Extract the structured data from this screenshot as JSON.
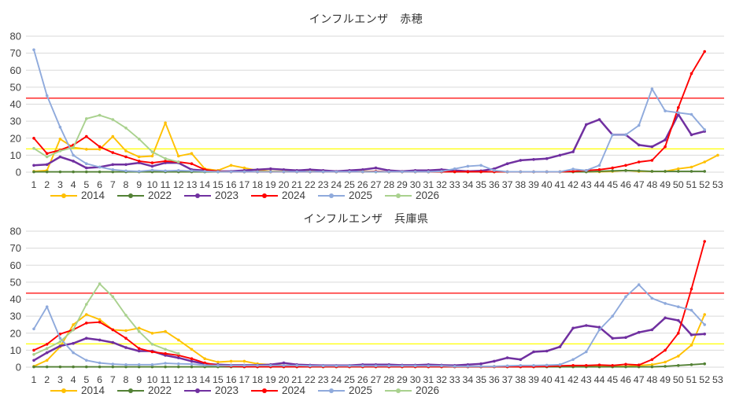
{
  "page": {
    "background": "#FFFFFF"
  },
  "colors": {
    "grid": "#D9D9D9",
    "axis_text": "#404040",
    "title_text": "#333333",
    "warning_line": "#FF0000",
    "attention_line": "#FFFF00"
  },
  "chart_data": [
    {
      "type": "line",
      "title": "インフルエンザ　赤穂",
      "xlabel": "",
      "ylabel": "",
      "ylim": [
        0,
        80
      ],
      "y_ticks": [
        0,
        10,
        20,
        30,
        40,
        50,
        60,
        70,
        80
      ],
      "x_ticks": [
        1,
        2,
        3,
        4,
        5,
        6,
        7,
        8,
        9,
        10,
        11,
        12,
        13,
        14,
        15,
        16,
        17,
        18,
        19,
        20,
        21,
        22,
        23,
        24,
        25,
        26,
        27,
        28,
        29,
        30,
        31,
        32,
        33,
        34,
        35,
        36,
        37,
        38,
        39,
        40,
        41,
        42,
        43,
        44,
        45,
        46,
        47,
        48,
        49,
        50,
        51,
        52,
        53
      ],
      "grid": true,
      "legend_position": "bottom",
      "reference_lines": [
        {
          "name": "warning-line",
          "value": 43.5,
          "color": "#FF0000"
        },
        {
          "name": "attention-line",
          "value": 13.7,
          "color": "#FFFF00"
        }
      ],
      "series": [
        {
          "name": "2014",
          "color": "#FFC000",
          "values": [
            0.5,
            1,
            19.5,
            14.5,
            13.5,
            13.5,
            21,
            12.5,
            9,
            9.5,
            29,
            9.5,
            11,
            2,
            1,
            4,
            2.5,
            1,
            0.5,
            0.5,
            0.5,
            0.5,
            0.5,
            0.3,
            0.3,
            0.5,
            0.5,
            0.3,
            0.3,
            0.3,
            0.3,
            0.3,
            0.3,
            0.3,
            0.3,
            0.3,
            0.3,
            0.3,
            0.3,
            0.3,
            0.3,
            0.3,
            0.3,
            0.3,
            0.5,
            1,
            0.5,
            0.5,
            0.5,
            2,
            3,
            6,
            10
          ]
        },
        {
          "name": "2022",
          "color": "#538135",
          "values": [
            0.2,
            0.2,
            0.2,
            0.2,
            0.2,
            0.2,
            0.2,
            0.2,
            0.2,
            0.2,
            0.2,
            0.2,
            0.2,
            0.2,
            0.2,
            0.2,
            0.2,
            0.2,
            0.2,
            0.2,
            0.2,
            0.2,
            0.2,
            0.2,
            0.2,
            0.2,
            0.2,
            0.2,
            0.2,
            0.2,
            0.2,
            0.2,
            0.2,
            0.2,
            0.2,
            0.2,
            0.2,
            0.2,
            0.2,
            0.2,
            0.2,
            0.2,
            0.2,
            0.5,
            0.8,
            1,
            0.8,
            0.5,
            0.5,
            0.5,
            0.5,
            0.5
          ]
        },
        {
          "name": "2023",
          "color": "#7030A0",
          "values": [
            4,
            4.5,
            9,
            6.5,
            2.5,
            3,
            4.5,
            4.5,
            5.5,
            3.5,
            5.5,
            5.5,
            1.5,
            1,
            0.5,
            0.5,
            1,
            1.5,
            2,
            1.5,
            1,
            1.5,
            1,
            0.5,
            1,
            1.5,
            2.5,
            1,
            0.5,
            1,
            1,
            1.5,
            1,
            0.5,
            0.8,
            2,
            5,
            7,
            7.5,
            8,
            10,
            12,
            28,
            31,
            22,
            22,
            16,
            15,
            19,
            34,
            22,
            24
          ]
        },
        {
          "name": "2024",
          "color": "#FF0000",
          "values": [
            20,
            11,
            13,
            16,
            21,
            15,
            11.5,
            9,
            6.5,
            5.5,
            6.5,
            6,
            5,
            1.5,
            0.5,
            0.3,
            0.3,
            0.3,
            0.3,
            0.3,
            0.3,
            0.3,
            0.3,
            0.3,
            0.3,
            0.3,
            0.5,
            0.3,
            0.3,
            0.3,
            0.3,
            0.3,
            0.3,
            0.3,
            0.3,
            0.3,
            0.3,
            0.3,
            0.3,
            0.3,
            0.3,
            0.5,
            1,
            1.5,
            2.5,
            4,
            6,
            7,
            15,
            38,
            58,
            71
          ]
        },
        {
          "name": "2025",
          "color": "#8FAADC",
          "values": [
            72,
            45,
            26.5,
            10,
            5,
            3,
            1.5,
            0.8,
            0.5,
            1.2,
            0.8,
            1,
            0.8,
            0.5,
            0.3,
            0.3,
            0.3,
            0.3,
            0.3,
            0.3,
            0.3,
            0.3,
            0.3,
            0.3,
            0.3,
            0.3,
            0.3,
            0.3,
            0.3,
            0.3,
            0.3,
            0.5,
            2,
            3.5,
            4,
            1,
            0.3,
            0.3,
            0.3,
            0.3,
            0.3,
            1.8,
            1,
            4,
            22,
            22,
            27.5,
            49,
            36,
            35,
            34,
            25
          ]
        },
        {
          "name": "2026",
          "color": "#A9D18E",
          "values": [
            14,
            9,
            12.5,
            14.5,
            31.5,
            33.5,
            31,
            26,
            19.5,
            12,
            8,
            6
          ]
        }
      ]
    },
    {
      "type": "line",
      "title": "インフルエンザ　兵庫県",
      "xlabel": "",
      "ylabel": "",
      "ylim": [
        0,
        80
      ],
      "y_ticks": [
        0,
        10,
        20,
        30,
        40,
        50,
        60,
        70,
        80
      ],
      "x_ticks": [
        1,
        2,
        3,
        4,
        5,
        6,
        7,
        8,
        9,
        10,
        11,
        12,
        13,
        14,
        15,
        16,
        17,
        18,
        19,
        20,
        21,
        22,
        23,
        24,
        25,
        26,
        27,
        28,
        29,
        30,
        31,
        32,
        33,
        34,
        35,
        36,
        37,
        38,
        39,
        40,
        41,
        42,
        43,
        44,
        45,
        46,
        47,
        48,
        49,
        50,
        51,
        52,
        53
      ],
      "grid": true,
      "legend_position": "bottom",
      "reference_lines": [
        {
          "name": "warning-line",
          "value": 43.5,
          "color": "#FF0000"
        },
        {
          "name": "attention-line",
          "value": 13.7,
          "color": "#FFFF00"
        }
      ],
      "series": [
        {
          "name": "2014",
          "color": "#FFC000",
          "values": [
            0.5,
            4,
            12,
            25,
            31,
            28,
            22,
            21.5,
            23,
            20,
            21,
            16,
            10.5,
            5,
            3,
            3.5,
            3.5,
            2,
            1.5,
            1,
            1,
            1,
            0.8,
            0.8,
            0.8,
            0.8,
            0.8,
            0.8,
            0.8,
            0.8,
            0.8,
            0.8,
            0.5,
            0.5,
            0.5,
            0.5,
            0.5,
            0.5,
            0.5,
            0.5,
            0.5,
            0.5,
            0.5,
            0.5,
            0.5,
            0.5,
            1,
            1.5,
            3,
            6.5,
            13,
            31
          ]
        },
        {
          "name": "2022",
          "color": "#538135",
          "values": [
            0.2,
            0.2,
            0.2,
            0.2,
            0.2,
            0.2,
            0.2,
            0.2,
            0.2,
            0.2,
            0.2,
            0.2,
            0.2,
            0.2,
            0.2,
            0.2,
            0.2,
            0.2,
            0.2,
            0.2,
            0.2,
            0.2,
            0.2,
            0.2,
            0.2,
            0.2,
            0.2,
            0.2,
            0.2,
            0.2,
            0.2,
            0.2,
            0.2,
            0.2,
            0.2,
            0.2,
            0.2,
            0.2,
            0.2,
            0.2,
            0.2,
            0.2,
            0.2,
            0.2,
            0.2,
            0.2,
            0.2,
            0.2,
            0.5,
            1,
            1.5,
            2
          ]
        },
        {
          "name": "2023",
          "color": "#7030A0",
          "values": [
            4,
            8.5,
            12.5,
            14,
            17,
            16,
            14.5,
            11.5,
            9.5,
            9.5,
            7,
            5.5,
            3.5,
            2,
            1.5,
            1.2,
            1.2,
            1.2,
            1.5,
            2.5,
            1.5,
            1.2,
            1,
            1,
            1,
            1.5,
            1.5,
            1.5,
            1.2,
            1.2,
            1.5,
            1.2,
            1,
            1.5,
            2,
            3.5,
            5.5,
            4.5,
            9,
            9.5,
            12,
            23,
            24.5,
            23.5,
            17,
            17.5,
            20.5,
            22,
            29,
            27.5,
            19,
            19.5
          ]
        },
        {
          "name": "2024",
          "color": "#FF0000",
          "values": [
            10,
            13.5,
            19.5,
            22,
            26,
            26.5,
            22,
            17,
            11,
            9,
            8,
            7,
            5,
            2.5,
            1,
            0.5,
            0.3,
            0.3,
            0.3,
            0.3,
            0.3,
            0.3,
            0.3,
            0.3,
            0.3,
            0.3,
            0.3,
            0.3,
            0.3,
            0.3,
            0.3,
            0.3,
            0.3,
            0.3,
            0.3,
            0.3,
            0.3,
            0.3,
            0.3,
            0.5,
            0.8,
            1,
            1,
            1.3,
            1,
            1.7,
            1.3,
            4.5,
            10,
            20,
            46,
            74
          ]
        },
        {
          "name": "2025",
          "color": "#8FAADC",
          "values": [
            22.5,
            35.5,
            17,
            8.5,
            4,
            2.5,
            1.8,
            1.5,
            1.5,
            1.5,
            2.3,
            2,
            1.8,
            1.2,
            1,
            1,
            1,
            1,
            1,
            1,
            1,
            0.8,
            0.8,
            0.8,
            0.8,
            0.8,
            0.8,
            0.8,
            0.8,
            0.8,
            0.8,
            0.8,
            0.5,
            0.5,
            0.5,
            0.5,
            0.8,
            1,
            1,
            1.2,
            1.5,
            4.5,
            9,
            22,
            30,
            41.5,
            48.5,
            40.5,
            37.5,
            35.5,
            33.5,
            25
          ]
        },
        {
          "name": "2026",
          "color": "#A9D18E",
          "values": [
            7.5,
            11,
            15,
            22,
            37,
            49,
            41.5,
            30.5,
            21,
            13.5,
            10.5,
            8
          ]
        }
      ]
    }
  ]
}
